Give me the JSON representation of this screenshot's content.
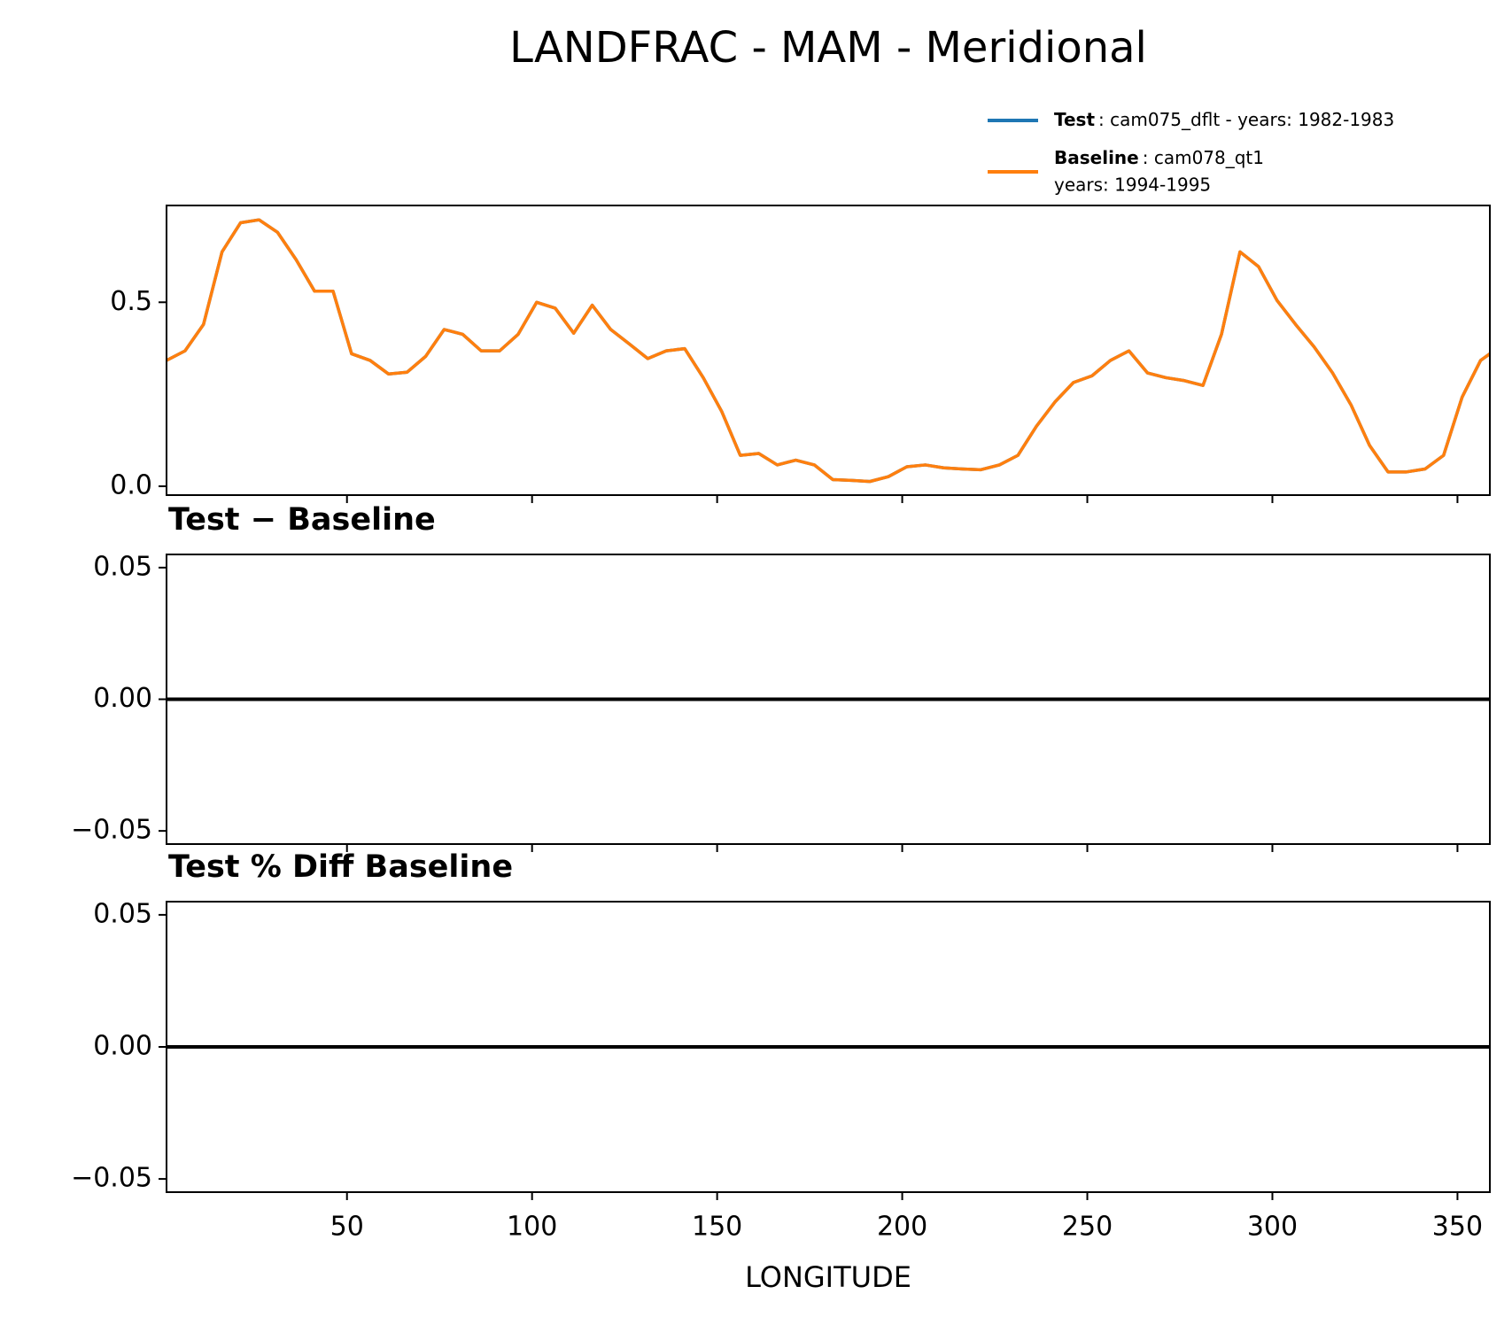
{
  "title": "LANDFRAC - MAM - Meridional",
  "chart_data": [
    {
      "type": "line",
      "xlim": [
        1.25,
        358.75
      ],
      "xticks": [
        50,
        100,
        150,
        200,
        250,
        300,
        350
      ],
      "ylim": [
        -0.024,
        0.763
      ],
      "yticks": [
        {
          "value": 0,
          "label": "0.0"
        },
        0.5
      ],
      "legend": "upper right",
      "x": [
        1.25,
        6.25,
        11.25,
        16.25,
        21.25,
        26.25,
        31.25,
        36.25,
        41.25,
        46.25,
        51.25,
        56.25,
        61.25,
        66.25,
        71.25,
        76.25,
        81.25,
        86.25,
        91.25,
        96.25,
        101.25,
        106.25,
        111.25,
        116.25,
        121.25,
        126.25,
        131.25,
        136.25,
        141.25,
        146.25,
        151.25,
        156.25,
        161.25,
        166.25,
        171.25,
        176.25,
        181.25,
        186.25,
        191.25,
        196.25,
        201.25,
        206.25,
        211.25,
        216.25,
        221.25,
        226.25,
        231.25,
        236.25,
        241.25,
        246.25,
        251.25,
        256.25,
        261.25,
        266.25,
        271.25,
        276.25,
        281.25,
        286.25,
        291.25,
        296.25,
        301.25,
        306.25,
        311.25,
        316.25,
        321.25,
        326.25,
        331.25,
        336.25,
        341.25,
        346.25,
        351.25,
        356.25,
        358.75
      ],
      "series": [
        {
          "name": "Test",
          "description": ": cam075_dflt - years: 1982-1983",
          "color": "#1f77b4",
          "values": [
            0.342,
            0.368,
            0.44,
            0.637,
            0.716,
            0.724,
            0.69,
            0.616,
            0.53,
            0.53,
            0.36,
            0.342,
            0.305,
            0.31,
            0.353,
            0.426,
            0.413,
            0.368,
            0.368,
            0.413,
            0.5,
            0.484,
            0.416,
            0.492,
            0.426,
            0.387,
            0.347,
            0.368,
            0.374,
            0.295,
            0.203,
            0.084,
            0.089,
            0.058,
            0.071,
            0.058,
            0.018,
            0.016,
            0.013,
            0.026,
            0.053,
            0.058,
            0.05,
            0.047,
            0.045,
            0.058,
            0.084,
            0.163,
            0.229,
            0.282,
            0.3,
            0.342,
            0.368,
            0.308,
            0.295,
            0.287,
            0.274,
            0.413,
            0.637,
            0.597,
            0.505,
            0.44,
            0.379,
            0.308,
            0.221,
            0.111,
            0.039,
            0.039,
            0.047,
            0.084,
            0.242,
            0.342,
            0.36
          ]
        },
        {
          "name": "Baseline",
          "description": [
            ": cam078_qt1",
            "years: 1994-1995"
          ],
          "color": "#ff7f0e",
          "values": [
            0.342,
            0.368,
            0.44,
            0.637,
            0.716,
            0.724,
            0.69,
            0.616,
            0.53,
            0.53,
            0.36,
            0.342,
            0.305,
            0.31,
            0.353,
            0.426,
            0.413,
            0.368,
            0.368,
            0.413,
            0.5,
            0.484,
            0.416,
            0.492,
            0.426,
            0.387,
            0.347,
            0.368,
            0.374,
            0.295,
            0.203,
            0.084,
            0.089,
            0.058,
            0.071,
            0.058,
            0.018,
            0.016,
            0.013,
            0.026,
            0.053,
            0.058,
            0.05,
            0.047,
            0.045,
            0.058,
            0.084,
            0.163,
            0.229,
            0.282,
            0.3,
            0.342,
            0.368,
            0.308,
            0.295,
            0.287,
            0.274,
            0.413,
            0.637,
            0.597,
            0.505,
            0.44,
            0.379,
            0.308,
            0.221,
            0.111,
            0.039,
            0.039,
            0.047,
            0.084,
            0.242,
            0.342,
            0.36
          ]
        }
      ]
    },
    {
      "type": "line",
      "title": "Test − Baseline",
      "xlim": [
        1.25,
        358.75
      ],
      "xticks": [
        50,
        100,
        150,
        200,
        250,
        300,
        350
      ],
      "ylim": [
        -0.055,
        0.055
      ],
      "yticks": [
        {
          "value": -0.05,
          "label": "−0.05"
        },
        {
          "value": 0,
          "label": "0.00"
        },
        0.05
      ],
      "x": [
        1.25,
        358.75
      ],
      "values": [
        0,
        0
      ],
      "color": "#000000"
    },
    {
      "type": "line",
      "title": "Test % Diff Baseline",
      "xlim": [
        1.25,
        358.75
      ],
      "xticks": [
        50,
        100,
        150,
        200,
        250,
        300,
        350
      ],
      "ylim": [
        -0.055,
        0.055
      ],
      "yticks": [
        {
          "value": -0.05,
          "label": "−0.05"
        },
        {
          "value": 0,
          "label": "0.00"
        },
        0.05
      ],
      "x": [
        1.25,
        358.75
      ],
      "values": [
        0,
        0
      ],
      "color": "#000000",
      "xlabel": "LONGITUDE"
    }
  ]
}
